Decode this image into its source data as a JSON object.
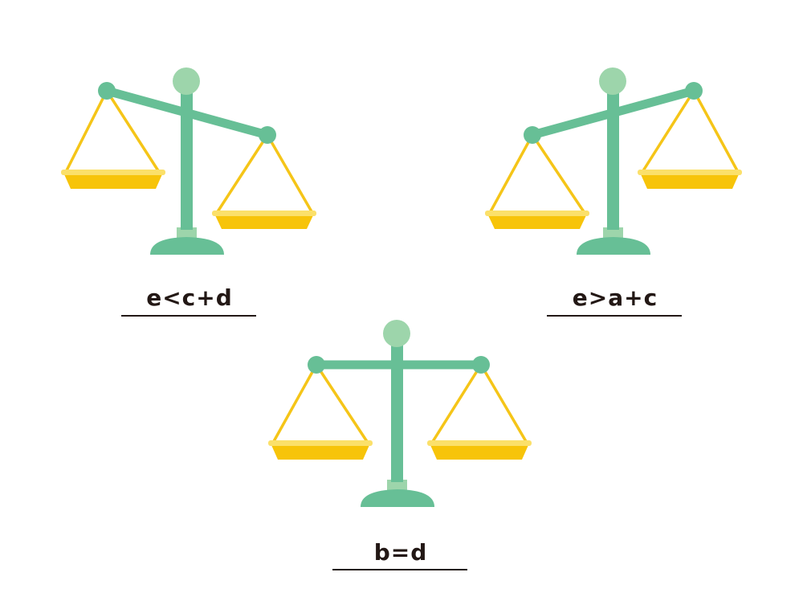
{
  "colors": {
    "frame": "#67bf96",
    "knob": "#9dd5ab",
    "rope": "#f5c518",
    "pan": "#f7c40a",
    "pan_rim": "#fbe06a",
    "text": "#231815"
  },
  "scales": [
    {
      "state": "right-pan-lower",
      "label": "e<c+d"
    },
    {
      "state": "left-pan-lower",
      "label": "e>a+c"
    },
    {
      "state": "balanced",
      "label": "b=d"
    }
  ]
}
